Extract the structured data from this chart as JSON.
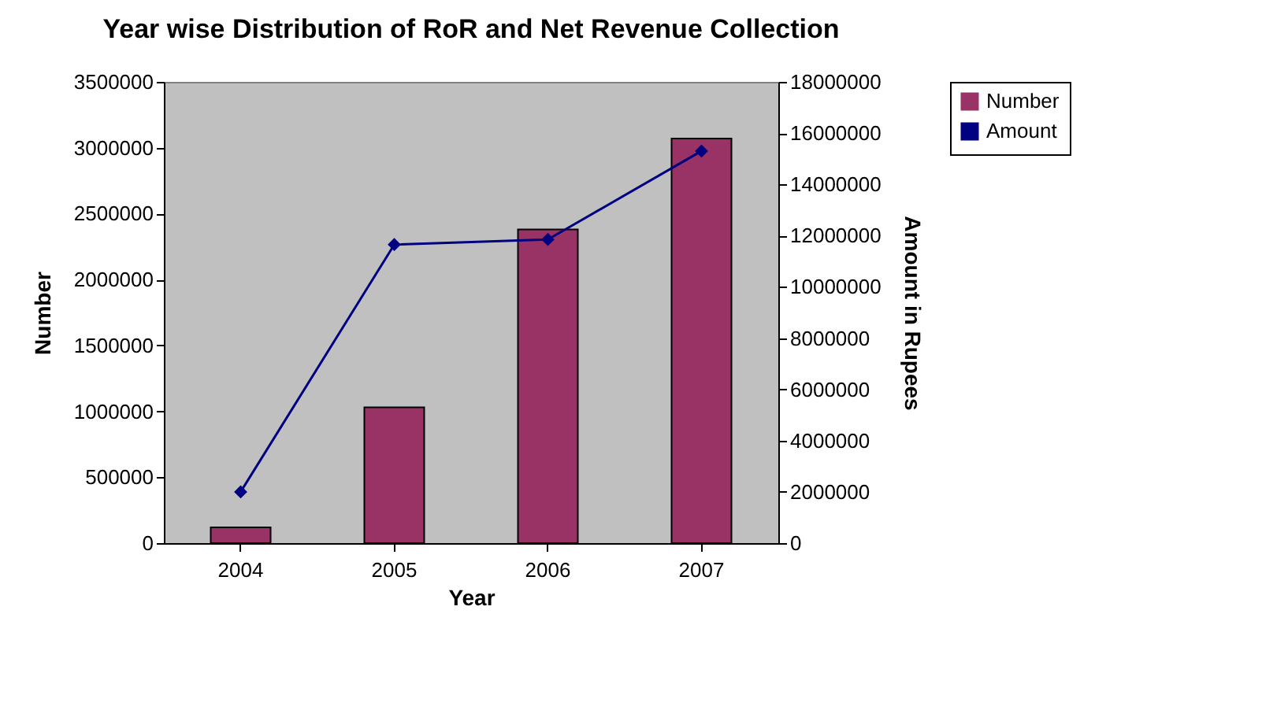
{
  "chart_data": {
    "type": "bar",
    "title": "Year wise Distribution of RoR and Net Revenue Collection",
    "xlabel": "Year",
    "ylabel": "Number",
    "y2label": "Amount in Rupees",
    "categories": [
      "2004",
      "2005",
      "2006",
      "2007"
    ],
    "series": [
      {
        "name": "Number",
        "color": "#993366",
        "values": [
          120000,
          1030000,
          2380000,
          3070000
        ]
      },
      {
        "name": "Amount",
        "type": "line",
        "axis": "y2",
        "color": "#000080",
        "marker": "diamond",
        "values": [
          2000000,
          11650000,
          11850000,
          15300000
        ]
      }
    ],
    "ylim": [
      0,
      3500000
    ],
    "yticks": [
      0,
      500000,
      1000000,
      1500000,
      2000000,
      2500000,
      3000000,
      3500000
    ],
    "y2lim": [
      0,
      18000000
    ],
    "y2ticks": [
      0,
      2000000,
      4000000,
      6000000,
      8000000,
      10000000,
      12000000,
      14000000,
      16000000,
      18000000
    ],
    "grid": false,
    "legend": "right"
  }
}
